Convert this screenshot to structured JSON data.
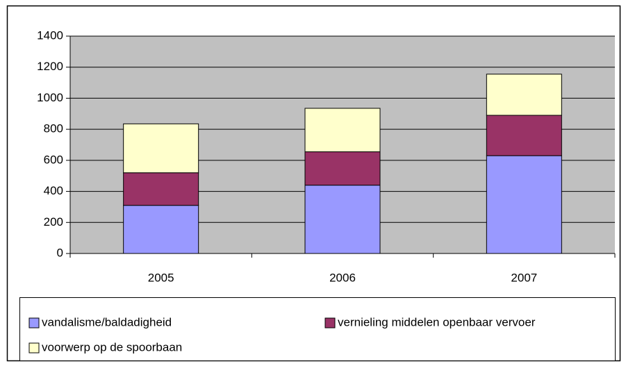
{
  "chart_data": {
    "type": "stacked_bar",
    "categories": [
      "2005",
      "2006",
      "2007"
    ],
    "series": [
      {
        "name": "vandalisme/baldadigheid",
        "color": "#9999ff",
        "values": [
          310,
          440,
          630
        ]
      },
      {
        "name": "vernieling middelen openbaar vervoer",
        "color": "#993366",
        "values": [
          210,
          215,
          260
        ]
      },
      {
        "name": "voorwerp op de spoorbaan",
        "color": "#ffffcc",
        "values": [
          315,
          280,
          265
        ]
      }
    ],
    "ylim": [
      0,
      1400
    ],
    "yticks": [
      0,
      200,
      400,
      600,
      800,
      1000,
      1200,
      1400
    ],
    "grid": true,
    "legend": "bottom",
    "plot_background": "#c0c0c0"
  }
}
